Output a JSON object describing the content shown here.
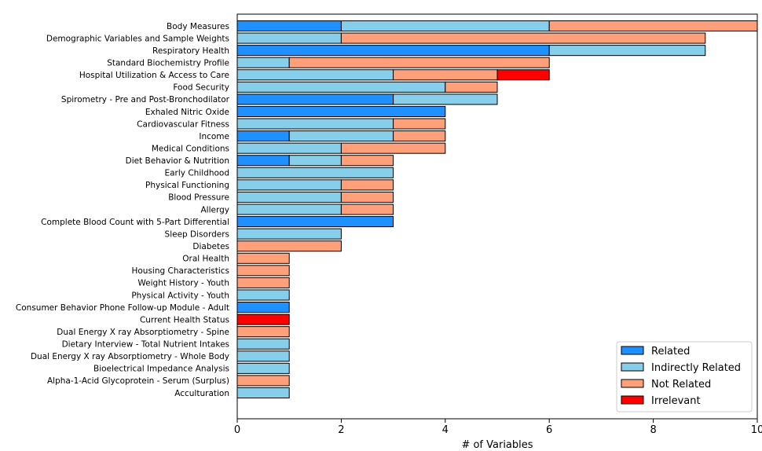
{
  "chart_data": {
    "type": "bar",
    "orientation": "horizontal",
    "stacked": true,
    "title": "",
    "xlabel": "# of Variables",
    "ylabel": "",
    "xlim": [
      0,
      10
    ],
    "xticks": [
      0,
      2,
      4,
      6,
      8,
      10
    ],
    "grid": false,
    "legend_position": "bottom-right",
    "categories": [
      "Body Measures",
      "Demographic Variables and Sample Weights",
      "Respiratory Health",
      "Standard Biochemistry Profile",
      "Hospital Utilization & Access to Care",
      "Food Security",
      "Spirometry - Pre and Post-Bronchodilator",
      "Exhaled Nitric Oxide",
      "Cardiovascular Fitness",
      "Income",
      "Medical Conditions",
      "Diet Behavior & Nutrition",
      "Early Childhood",
      "Physical Functioning",
      "Blood Pressure",
      "Allergy",
      "Complete Blood Count with 5-Part Differential",
      "Sleep Disorders",
      "Diabetes",
      "Oral Health",
      "Housing Characteristics",
      "Weight History - Youth",
      "Physical Activity - Youth",
      "Consumer Behavior Phone Follow-up Module - Adult",
      "Current Health Status",
      "Dual Energy X ray Absorptiometry - Spine",
      "Dietary Interview - Total Nutrient Intakes",
      "Dual Energy X ray Absorptiometry - Whole Body",
      "Bioelectrical Impedance Analysis",
      "Alpha-1-Acid Glycoprotein - Serum (Surplus)",
      "Acculturation"
    ],
    "series": [
      {
        "name": "Related",
        "color": "#1e90ff",
        "values": [
          2,
          0,
          6,
          0,
          0,
          0,
          3,
          4,
          0,
          1,
          0,
          1,
          0,
          0,
          0,
          0,
          3,
          0,
          0,
          0,
          0,
          0,
          0,
          1,
          0,
          0,
          0,
          0,
          0,
          0,
          0
        ]
      },
      {
        "name": "Indirectly Related",
        "color": "#87ceeb",
        "values": [
          4,
          2,
          3,
          1,
          3,
          4,
          2,
          0,
          3,
          2,
          2,
          1,
          3,
          2,
          2,
          2,
          0,
          2,
          0,
          0,
          0,
          0,
          1,
          0,
          0,
          0,
          1,
          1,
          1,
          0,
          1
        ]
      },
      {
        "name": "Not Related",
        "color": "#ffa07a",
        "values": [
          4,
          7,
          0,
          5,
          2,
          1,
          0,
          0,
          1,
          1,
          2,
          1,
          0,
          1,
          1,
          1,
          0,
          0,
          2,
          1,
          1,
          1,
          0,
          0,
          0,
          1,
          0,
          0,
          0,
          1,
          0
        ]
      },
      {
        "name": "Irrelevant",
        "color": "#ff0000",
        "values": [
          0,
          0,
          0,
          0,
          1,
          0,
          0,
          0,
          0,
          0,
          0,
          0,
          0,
          0,
          0,
          0,
          0,
          0,
          0,
          0,
          0,
          0,
          0,
          0,
          1,
          0,
          0,
          0,
          0,
          0,
          0
        ]
      }
    ]
  }
}
